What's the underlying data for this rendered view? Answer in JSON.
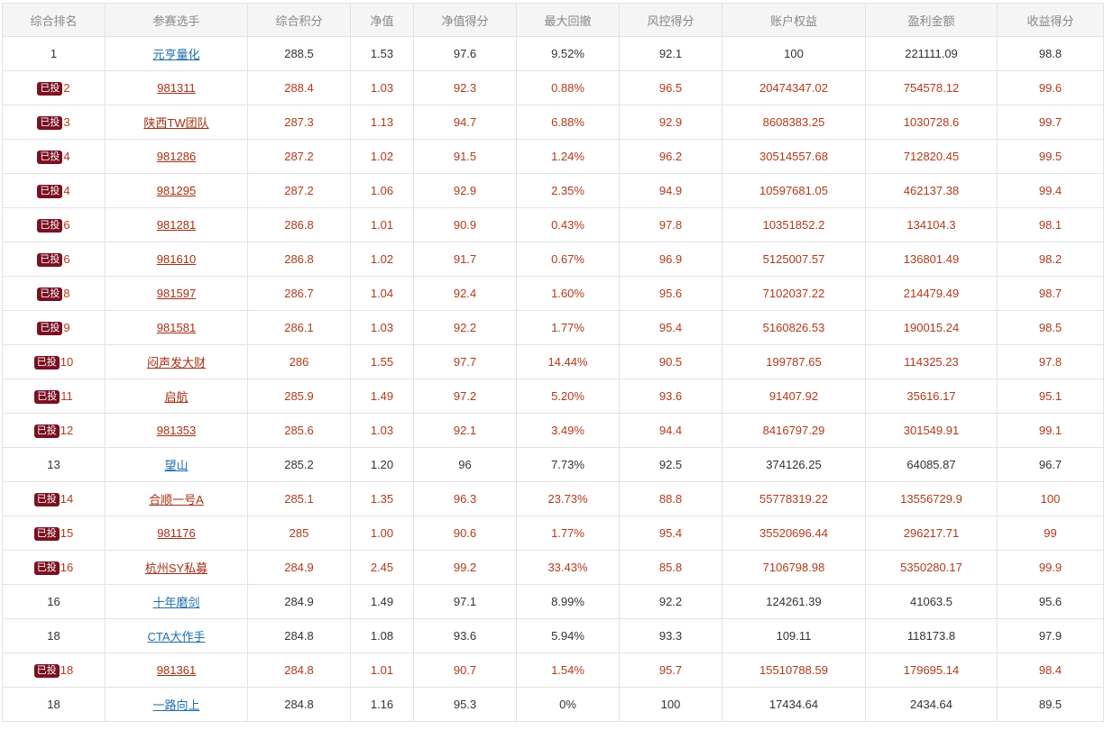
{
  "table": {
    "headers": [
      "综合排名",
      "参赛选手",
      "综合积分",
      "净值",
      "净值得分",
      "最大回撤",
      "风控得分",
      "账户权益",
      "盈利金额",
      "收益得分"
    ],
    "badge_label": "已投",
    "colors": {
      "invested_text": "#b23a1b",
      "normal_link": "#1c6eb0",
      "badge_bg": "#7a1021"
    },
    "rows": [
      {
        "invested": false,
        "rank": "1",
        "name": "元亨量化",
        "score": "288.5",
        "nav": "1.53",
        "nav_score": "97.6",
        "max_drawdown": "9.52%",
        "risk_score": "92.1",
        "equity": "100",
        "profit": "221111.09",
        "return_score": "98.8"
      },
      {
        "invested": true,
        "rank": "2",
        "name": "981311",
        "score": "288.4",
        "nav": "1.03",
        "nav_score": "92.3",
        "max_drawdown": "0.88%",
        "risk_score": "96.5",
        "equity": "20474347.02",
        "profit": "754578.12",
        "return_score": "99.6"
      },
      {
        "invested": true,
        "rank": "3",
        "name": "陕西TW团队",
        "score": "287.3",
        "nav": "1.13",
        "nav_score": "94.7",
        "max_drawdown": "6.88%",
        "risk_score": "92.9",
        "equity": "8608383.25",
        "profit": "1030728.6",
        "return_score": "99.7"
      },
      {
        "invested": true,
        "rank": "4",
        "name": "981286",
        "score": "287.2",
        "nav": "1.02",
        "nav_score": "91.5",
        "max_drawdown": "1.24%",
        "risk_score": "96.2",
        "equity": "30514557.68",
        "profit": "712820.45",
        "return_score": "99.5"
      },
      {
        "invested": true,
        "rank": "4",
        "name": "981295",
        "score": "287.2",
        "nav": "1.06",
        "nav_score": "92.9",
        "max_drawdown": "2.35%",
        "risk_score": "94.9",
        "equity": "10597681.05",
        "profit": "462137.38",
        "return_score": "99.4"
      },
      {
        "invested": true,
        "rank": "6",
        "name": "981281",
        "score": "286.8",
        "nav": "1.01",
        "nav_score": "90.9",
        "max_drawdown": "0.43%",
        "risk_score": "97.8",
        "equity": "10351852.2",
        "profit": "134104.3",
        "return_score": "98.1"
      },
      {
        "invested": true,
        "rank": "6",
        "name": "981610",
        "score": "286.8",
        "nav": "1.02",
        "nav_score": "91.7",
        "max_drawdown": "0.67%",
        "risk_score": "96.9",
        "equity": "5125007.57",
        "profit": "136801.49",
        "return_score": "98.2"
      },
      {
        "invested": true,
        "rank": "8",
        "name": "981597",
        "score": "286.7",
        "nav": "1.04",
        "nav_score": "92.4",
        "max_drawdown": "1.60%",
        "risk_score": "95.6",
        "equity": "7102037.22",
        "profit": "214479.49",
        "return_score": "98.7"
      },
      {
        "invested": true,
        "rank": "9",
        "name": "981581",
        "score": "286.1",
        "nav": "1.03",
        "nav_score": "92.2",
        "max_drawdown": "1.77%",
        "risk_score": "95.4",
        "equity": "5160826.53",
        "profit": "190015.24",
        "return_score": "98.5"
      },
      {
        "invested": true,
        "rank": "10",
        "name": "闷声发大财",
        "score": "286",
        "nav": "1.55",
        "nav_score": "97.7",
        "max_drawdown": "14.44%",
        "risk_score": "90.5",
        "equity": "199787.65",
        "profit": "114325.23",
        "return_score": "97.8"
      },
      {
        "invested": true,
        "rank": "11",
        "name": "启航",
        "score": "285.9",
        "nav": "1.49",
        "nav_score": "97.2",
        "max_drawdown": "5.20%",
        "risk_score": "93.6",
        "equity": "91407.92",
        "profit": "35616.17",
        "return_score": "95.1"
      },
      {
        "invested": true,
        "rank": "12",
        "name": "981353",
        "score": "285.6",
        "nav": "1.03",
        "nav_score": "92.1",
        "max_drawdown": "3.49%",
        "risk_score": "94.4",
        "equity": "8416797.29",
        "profit": "301549.91",
        "return_score": "99.1"
      },
      {
        "invested": false,
        "rank": "13",
        "name": "望山",
        "score": "285.2",
        "nav": "1.20",
        "nav_score": "96",
        "max_drawdown": "7.73%",
        "risk_score": "92.5",
        "equity": "374126.25",
        "profit": "64085.87",
        "return_score": "96.7"
      },
      {
        "invested": true,
        "rank": "14",
        "name": "合顺一号A",
        "score": "285.1",
        "nav": "1.35",
        "nav_score": "96.3",
        "max_drawdown": "23.73%",
        "risk_score": "88.8",
        "equity": "55778319.22",
        "profit": "13556729.9",
        "return_score": "100"
      },
      {
        "invested": true,
        "rank": "15",
        "name": "981176",
        "score": "285",
        "nav": "1.00",
        "nav_score": "90.6",
        "max_drawdown": "1.77%",
        "risk_score": "95.4",
        "equity": "35520696.44",
        "profit": "296217.71",
        "return_score": "99"
      },
      {
        "invested": true,
        "rank": "16",
        "name": "杭州SY私募",
        "score": "284.9",
        "nav": "2.45",
        "nav_score": "99.2",
        "max_drawdown": "33.43%",
        "risk_score": "85.8",
        "equity": "7106798.98",
        "profit": "5350280.17",
        "return_score": "99.9"
      },
      {
        "invested": false,
        "rank": "16",
        "name": "十年磨剑",
        "score": "284.9",
        "nav": "1.49",
        "nav_score": "97.1",
        "max_drawdown": "8.99%",
        "risk_score": "92.2",
        "equity": "124261.39",
        "profit": "41063.5",
        "return_score": "95.6"
      },
      {
        "invested": false,
        "rank": "18",
        "name": "CTA大作手",
        "score": "284.8",
        "nav": "1.08",
        "nav_score": "93.6",
        "max_drawdown": "5.94%",
        "risk_score": "93.3",
        "equity": "109.11",
        "profit": "118173.8",
        "return_score": "97.9"
      },
      {
        "invested": true,
        "rank": "18",
        "name": "981361",
        "score": "284.8",
        "nav": "1.01",
        "nav_score": "90.7",
        "max_drawdown": "1.54%",
        "risk_score": "95.7",
        "equity": "15510788.59",
        "profit": "179695.14",
        "return_score": "98.4"
      },
      {
        "invested": false,
        "rank": "18",
        "name": "一路向上",
        "score": "284.8",
        "nav": "1.16",
        "nav_score": "95.3",
        "max_drawdown": "0%",
        "risk_score": "100",
        "equity": "17434.64",
        "profit": "2434.64",
        "return_score": "89.5"
      }
    ]
  }
}
